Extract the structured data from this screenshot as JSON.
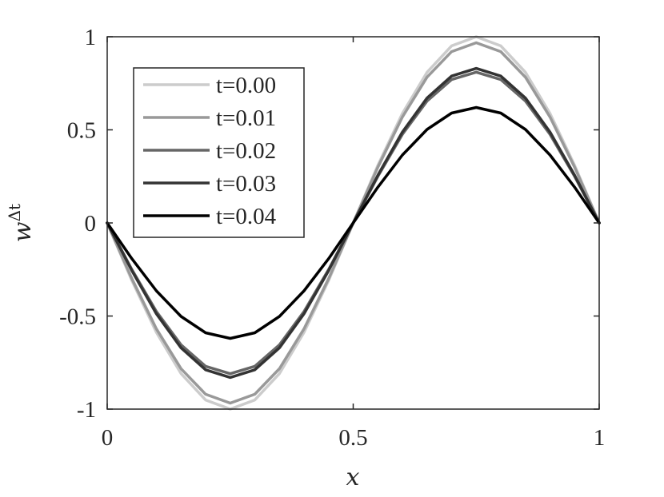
{
  "chart_data": {
    "type": "line",
    "title": "",
    "xlabel": "x",
    "ylabel_base": "w",
    "ylabel_sup": "Δt",
    "xlim": [
      0,
      1
    ],
    "ylim": [
      -1,
      1
    ],
    "xticks": [
      0,
      0.5,
      1
    ],
    "xtick_labels": [
      "0",
      "0.5",
      "1"
    ],
    "yticks": [
      -1,
      -0.5,
      0,
      0.5,
      1
    ],
    "ytick_labels": [
      "-1",
      "-0.5",
      "0",
      "0.5",
      "1"
    ],
    "grid": false,
    "legend_position": "top-left",
    "x": [
      0,
      0.05,
      0.1,
      0.15,
      0.2,
      0.25,
      0.3,
      0.35,
      0.4,
      0.45,
      0.5,
      0.55,
      0.6,
      0.65,
      0.7,
      0.75,
      0.8,
      0.85,
      0.9,
      0.95,
      1
    ],
    "series": [
      {
        "name": "t=0.00",
        "color": "#cccccc",
        "values": [
          0,
          -0.309,
          -0.588,
          -0.809,
          -0.951,
          -1.0,
          -0.951,
          -0.809,
          -0.588,
          -0.309,
          0,
          0.309,
          0.588,
          0.809,
          0.951,
          1.0,
          0.951,
          0.809,
          0.588,
          0.309,
          0
        ]
      },
      {
        "name": "t=0.01",
        "color": "#999999",
        "values": [
          0,
          -0.299,
          -0.569,
          -0.783,
          -0.92,
          -0.968,
          -0.92,
          -0.783,
          -0.569,
          -0.299,
          0,
          0.299,
          0.569,
          0.783,
          0.92,
          0.968,
          0.92,
          0.783,
          0.569,
          0.299,
          0
        ]
      },
      {
        "name": "t=0.02",
        "color": "#666666",
        "values": [
          0,
          -0.25,
          -0.476,
          -0.655,
          -0.77,
          -0.81,
          -0.77,
          -0.655,
          -0.476,
          -0.25,
          0,
          0.25,
          0.476,
          0.655,
          0.77,
          0.81,
          0.77,
          0.655,
          0.476,
          0.25,
          0
        ]
      },
      {
        "name": "t=0.03",
        "color": "#333333",
        "values": [
          0,
          -0.256,
          -0.488,
          -0.671,
          -0.789,
          -0.83,
          -0.789,
          -0.671,
          -0.488,
          -0.256,
          0,
          0.256,
          0.488,
          0.671,
          0.789,
          0.83,
          0.789,
          0.671,
          0.488,
          0.256,
          0
        ]
      },
      {
        "name": "t=0.04",
        "color": "#000000",
        "values": [
          0,
          -0.192,
          -0.365,
          -0.502,
          -0.59,
          -0.62,
          -0.59,
          -0.502,
          -0.365,
          -0.192,
          0,
          0.192,
          0.365,
          0.502,
          0.59,
          0.62,
          0.59,
          0.502,
          0.365,
          0.192,
          0
        ]
      }
    ]
  }
}
